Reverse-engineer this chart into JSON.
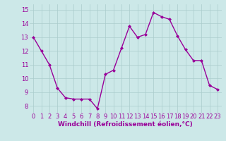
{
  "x": [
    0,
    1,
    2,
    3,
    4,
    5,
    6,
    7,
    8,
    9,
    10,
    11,
    12,
    13,
    14,
    15,
    16,
    17,
    18,
    19,
    20,
    21,
    22,
    23
  ],
  "y": [
    13.0,
    12.0,
    11.0,
    9.3,
    8.6,
    8.5,
    8.5,
    8.5,
    7.8,
    10.3,
    10.6,
    12.2,
    13.8,
    13.0,
    13.2,
    14.8,
    14.5,
    14.3,
    13.1,
    12.1,
    11.3,
    11.3,
    9.5,
    9.2
  ],
  "line_color": "#990099",
  "marker": "D",
  "marker_size": 2.0,
  "bg_color": "#cce8e8",
  "grid_color": "#aacccc",
  "xlabel": "Windchill (Refroidissement éolien,°C)",
  "xlabel_color": "#990099",
  "xlabel_fontsize": 6.5,
  "tick_color": "#990099",
  "tick_fontsize": 6.0,
  "ylim": [
    7.5,
    15.4
  ],
  "yticks": [
    8,
    9,
    10,
    11,
    12,
    13,
    14,
    15
  ],
  "xticks": [
    0,
    1,
    2,
    3,
    4,
    5,
    6,
    7,
    8,
    9,
    10,
    11,
    12,
    13,
    14,
    15,
    16,
    17,
    18,
    19,
    20,
    21,
    22,
    23
  ],
  "line_width": 1.0
}
